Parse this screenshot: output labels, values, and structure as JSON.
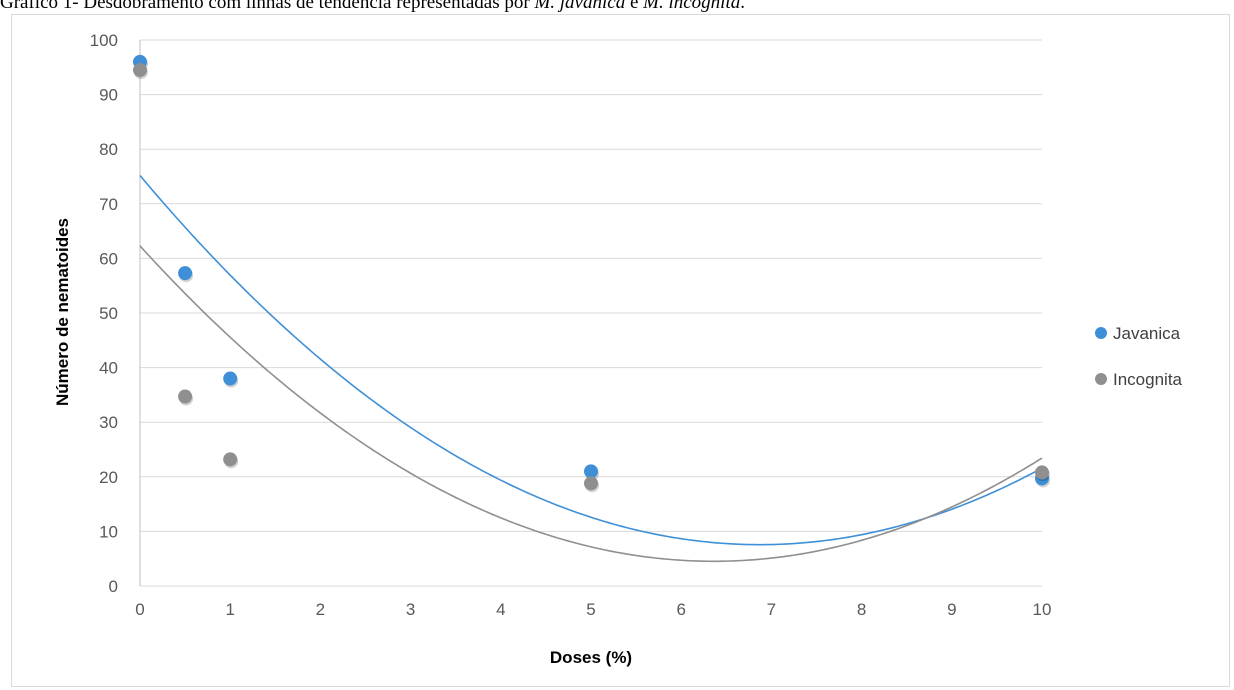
{
  "caption": {
    "prefix": "Gráfico 1- Desdobramento com linhas de tendência representadas por ",
    "species1": "M. javanica",
    "conj": " e ",
    "species2": "M. incognita",
    "suffix": "."
  },
  "chart_data": {
    "type": "scatter",
    "xlabel": "Doses (%)",
    "ylabel": "Número de nematoides",
    "xlim": [
      0,
      10
    ],
    "ylim": [
      0,
      100
    ],
    "xticks": [
      0,
      1,
      2,
      3,
      4,
      5,
      6,
      7,
      8,
      9,
      10
    ],
    "yticks": [
      0,
      10,
      20,
      30,
      40,
      50,
      60,
      70,
      80,
      90,
      100
    ],
    "grid": "horizontal",
    "legend_position": "right",
    "series": [
      {
        "name": "Javanica",
        "color": "#3f8fd8",
        "trendline": "polynomial-2",
        "x": [
          0,
          0.5,
          1,
          5,
          10
        ],
        "y": [
          96,
          57.3,
          38,
          21,
          19.7
        ]
      },
      {
        "name": "Incognita",
        "color": "#8f8f8f",
        "trendline": "polynomial-2",
        "x": [
          0,
          0.5,
          1,
          5,
          10
        ],
        "y": [
          94.5,
          34.7,
          23.2,
          18.8,
          20.8
        ]
      }
    ]
  }
}
